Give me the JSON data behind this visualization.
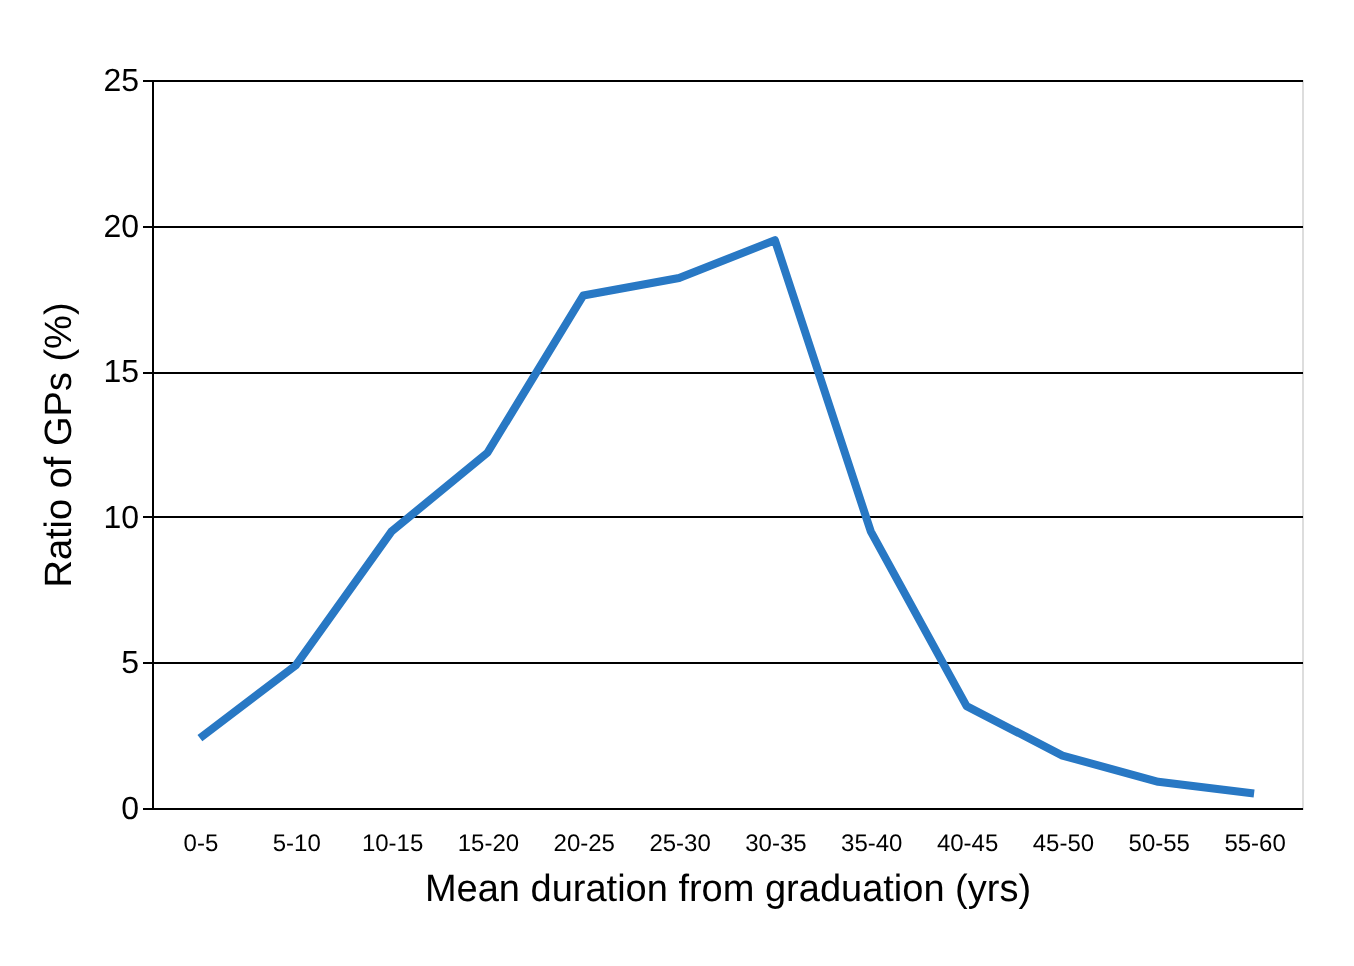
{
  "chart_data": {
    "type": "line",
    "xlabel": "Mean duration from graduation (yrs)",
    "ylabel": "Ratio of GPs (%)",
    "categories": [
      "0-5",
      "5-10",
      "10-15",
      "15-20",
      "20-25",
      "25-30",
      "30-35",
      "35-40",
      "40-45",
      "45-50",
      "50-55",
      "55-60"
    ],
    "series": [
      {
        "color": "#2878c4",
        "values": [
          2.4,
          4.9,
          9.5,
          12.2,
          17.6,
          18.2,
          19.5,
          9.5,
          3.5,
          1.8,
          0.9,
          0.5
        ]
      }
    ],
    "ylim": [
      0,
      25
    ],
    "yticks": [
      0,
      5,
      10,
      15,
      20,
      25
    ],
    "grid": "y",
    "legend": false,
    "marker": "none",
    "line_style": "solid"
  }
}
